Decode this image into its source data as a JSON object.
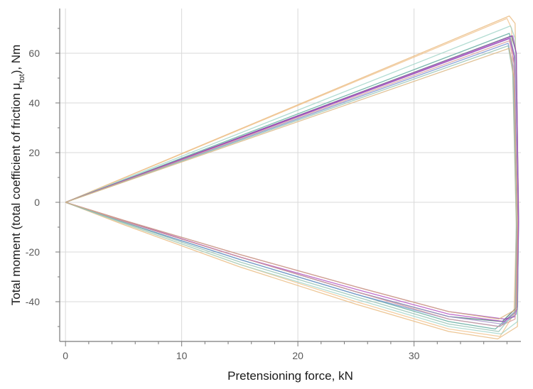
{
  "chart_data": {
    "type": "line",
    "xlabel": "Pretensioning force, kN",
    "ylabel_main": "Total moment (total coefficient of friction μ",
    "ylabel_sub": "tot",
    "ylabel_tail": "), Nm",
    "xlim": [
      -0.5,
      39.2
    ],
    "ylim": [
      -56,
      78
    ],
    "xticks": [
      0,
      10,
      20,
      30
    ],
    "xtick_labels": [
      "0",
      "10",
      "20",
      "30"
    ],
    "yticks": [
      -40,
      -20,
      0,
      20,
      40,
      60
    ],
    "ytick_labels": [
      "-40",
      "-20",
      "0",
      "20",
      "40",
      "60"
    ],
    "grid": true,
    "legend": "none",
    "series": [
      {
        "color": "#e8b87a",
        "x": [
          0,
          38.2,
          38.7,
          39.0,
          38.9,
          37.2,
          33,
          25,
          15,
          5,
          0
        ],
        "y": [
          0,
          75,
          72,
          0,
          -50,
          -55,
          -52,
          -41,
          -26,
          -9,
          0
        ]
      },
      {
        "color": "#f0c08a",
        "x": [
          0,
          38.0,
          38.4,
          38.8,
          38.6,
          37.4,
          33,
          25,
          15,
          5,
          0
        ],
        "y": [
          0,
          74,
          70,
          -10,
          -45,
          -54,
          -51,
          -40,
          -25,
          -8.5,
          0
        ]
      },
      {
        "color": "#9fd3c7",
        "x": [
          0,
          38.3,
          38.7,
          39.0,
          38.9,
          37.5,
          33,
          25,
          15,
          5,
          0
        ],
        "y": [
          0,
          71,
          66,
          -5,
          -48,
          -53,
          -50,
          -39,
          -25,
          -8.5,
          0
        ]
      },
      {
        "color": "#5aa89a",
        "x": [
          0,
          38.2,
          38.6,
          38.9,
          38.7,
          37.0,
          33,
          25,
          15,
          5,
          0
        ],
        "y": [
          0,
          68,
          60,
          -5,
          -44,
          -51,
          -48,
          -37,
          -23,
          -8,
          0
        ]
      },
      {
        "color": "#3c6e6a",
        "x": [
          0,
          38.4,
          38.8,
          39.0,
          38.9,
          37.6,
          33,
          25,
          15,
          5,
          0
        ],
        "y": [
          0,
          67,
          60,
          -8,
          -42,
          -48,
          -46,
          -36,
          -22,
          -7.5,
          0
        ]
      },
      {
        "color": "#a28fc9",
        "x": [
          0,
          38.3,
          38.7,
          39.0,
          38.9,
          37.6,
          33,
          25,
          15,
          5,
          0
        ],
        "y": [
          0,
          66,
          58,
          -10,
          -43,
          -49,
          -46,
          -36,
          -22,
          -7.5,
          0
        ]
      },
      {
        "color": "#6f8fd0",
        "x": [
          0,
          38.1,
          38.5,
          38.9,
          38.8,
          37.4,
          33,
          25,
          15,
          5,
          0
        ],
        "y": [
          0,
          64,
          55,
          -8,
          -45,
          -50,
          -47,
          -37,
          -23,
          -8,
          0
        ]
      },
      {
        "color": "#b04cc0",
        "x": [
          0,
          38.5,
          38.8,
          39.0,
          38.8,
          37.8,
          33,
          25,
          15,
          5,
          0
        ],
        "y": [
          0,
          67,
          60,
          -8,
          -44,
          -48,
          -45,
          -35,
          -22,
          -7.3,
          0
        ]
      },
      {
        "color": "#9c3fb8",
        "x": [
          0,
          38.2,
          38.6,
          38.9,
          38.7,
          37.8,
          33,
          25,
          15,
          5,
          0
        ],
        "y": [
          0,
          66,
          59,
          -9,
          -46,
          -47,
          -44,
          -34,
          -21,
          -7.2,
          0
        ]
      },
      {
        "color": "#d79a9a",
        "x": [
          0,
          38.2,
          38.6,
          38.9,
          38.7,
          37.3,
          33,
          25,
          15,
          5,
          0
        ],
        "y": [
          0,
          65,
          56,
          -12,
          -47,
          -50,
          -47,
          -36,
          -22,
          -7.6,
          0
        ]
      },
      {
        "color": "#8fbfb0",
        "x": [
          0,
          38.1,
          38.5,
          38.8,
          38.7,
          37.3,
          33,
          25,
          15,
          5,
          0
        ],
        "y": [
          0,
          63,
          52,
          -8,
          -44,
          -52,
          -49,
          -38,
          -24,
          -8.1,
          0
        ]
      },
      {
        "color": "#d9b47e",
        "x": [
          0,
          38.2,
          38.6,
          38.9,
          38.8,
          37.3,
          33,
          25,
          15,
          5,
          0
        ],
        "y": [
          0,
          62,
          50,
          -10,
          -43,
          -47,
          -44,
          -34,
          -21,
          -7.2,
          0
        ]
      }
    ]
  }
}
